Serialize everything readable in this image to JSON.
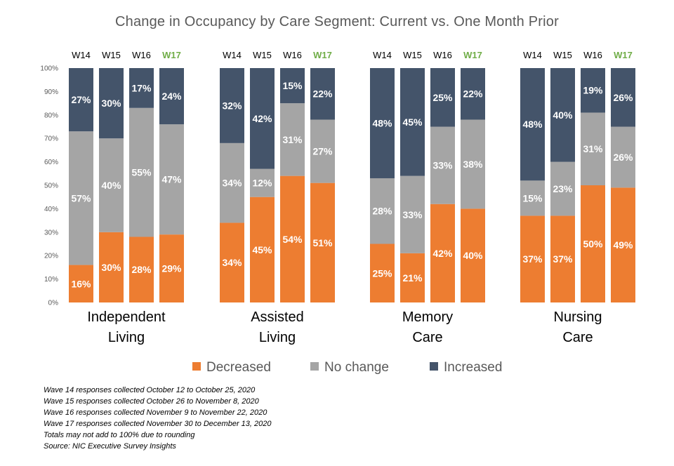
{
  "chart_data": {
    "type": "bar",
    "stacked": true,
    "title": "Change in Occupancy by Care Segment: Current vs. One Month Prior",
    "y_ticks": [
      "0%",
      "10%",
      "20%",
      "30%",
      "40%",
      "50%",
      "60%",
      "70%",
      "80%",
      "90%",
      "100%"
    ],
    "ylim": [
      0,
      100
    ],
    "waves": [
      "W14",
      "W15",
      "W16",
      "W17"
    ],
    "highlight_wave": "W17",
    "series_names": [
      "Decreased",
      "No change",
      "Increased"
    ],
    "colors": {
      "Decreased": "#ED7D31",
      "No change": "#A5A5A5",
      "Increased": "#44546A",
      "highlight": "#70AD47"
    },
    "groups": [
      {
        "label_lines": [
          "Independent",
          "Living"
        ],
        "decreased": [
          16,
          30,
          28,
          29
        ],
        "no_change": [
          57,
          40,
          55,
          47
        ],
        "increased": [
          27,
          30,
          17,
          24
        ]
      },
      {
        "label_lines": [
          "Assisted",
          "Living"
        ],
        "decreased": [
          34,
          45,
          54,
          51
        ],
        "no_change": [
          34,
          12,
          31,
          27
        ],
        "increased": [
          32,
          42,
          15,
          22
        ]
      },
      {
        "label_lines": [
          "Memory",
          "Care"
        ],
        "decreased": [
          25,
          21,
          42,
          40
        ],
        "no_change": [
          28,
          33,
          33,
          38
        ],
        "increased": [
          48,
          45,
          25,
          22
        ]
      },
      {
        "label_lines": [
          "Nursing",
          "Care"
        ],
        "decreased": [
          37,
          37,
          50,
          49
        ],
        "no_change": [
          15,
          23,
          31,
          26
        ],
        "increased": [
          48,
          40,
          19,
          26
        ]
      }
    ],
    "legend_position": "bottom"
  },
  "notes": [
    "Wave 14 responses collected October 12 to October 25, 2020",
    "Wave 15 responses collected October 26 to November 8, 2020",
    "Wave 16 responses collected November 9 to November 22, 2020",
    "Wave 17 responses collected November 30 to December 13, 2020",
    "Totals may not add to 100% due to rounding",
    "Source: NIC Executive Survey Insights"
  ]
}
